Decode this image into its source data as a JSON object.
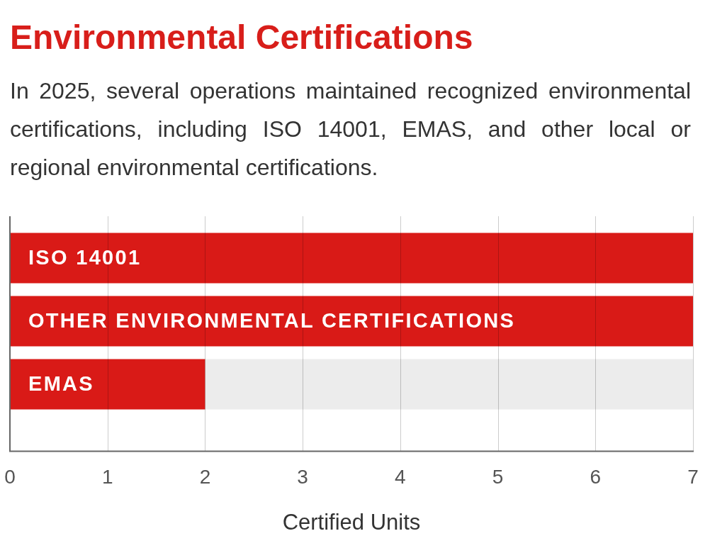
{
  "chart_data": {
    "type": "bar",
    "orientation": "horizontal",
    "stacked": true,
    "title": "Environmental Certifications",
    "subtitle": "In 2025, several operations maintained recognized environmental certifications, including ISO 14001, EMAS, and other local or regional environmental certifications.",
    "xlabel": "Certified Units",
    "categories": [
      "ISO 14001",
      "OTHER ENVIRONMENTAL CERTIFICATIONS",
      "EMAS"
    ],
    "series": [
      {
        "color": "#d91a17",
        "values": [
          7,
          7,
          2
        ]
      },
      {
        "color": "#ececec",
        "values": [
          0,
          0,
          5
        ]
      }
    ],
    "xlim": [
      0,
      7
    ],
    "xticks": [
      0,
      1,
      2,
      3,
      4,
      5,
      6,
      7
    ],
    "grid": "x",
    "legend": false
  }
}
